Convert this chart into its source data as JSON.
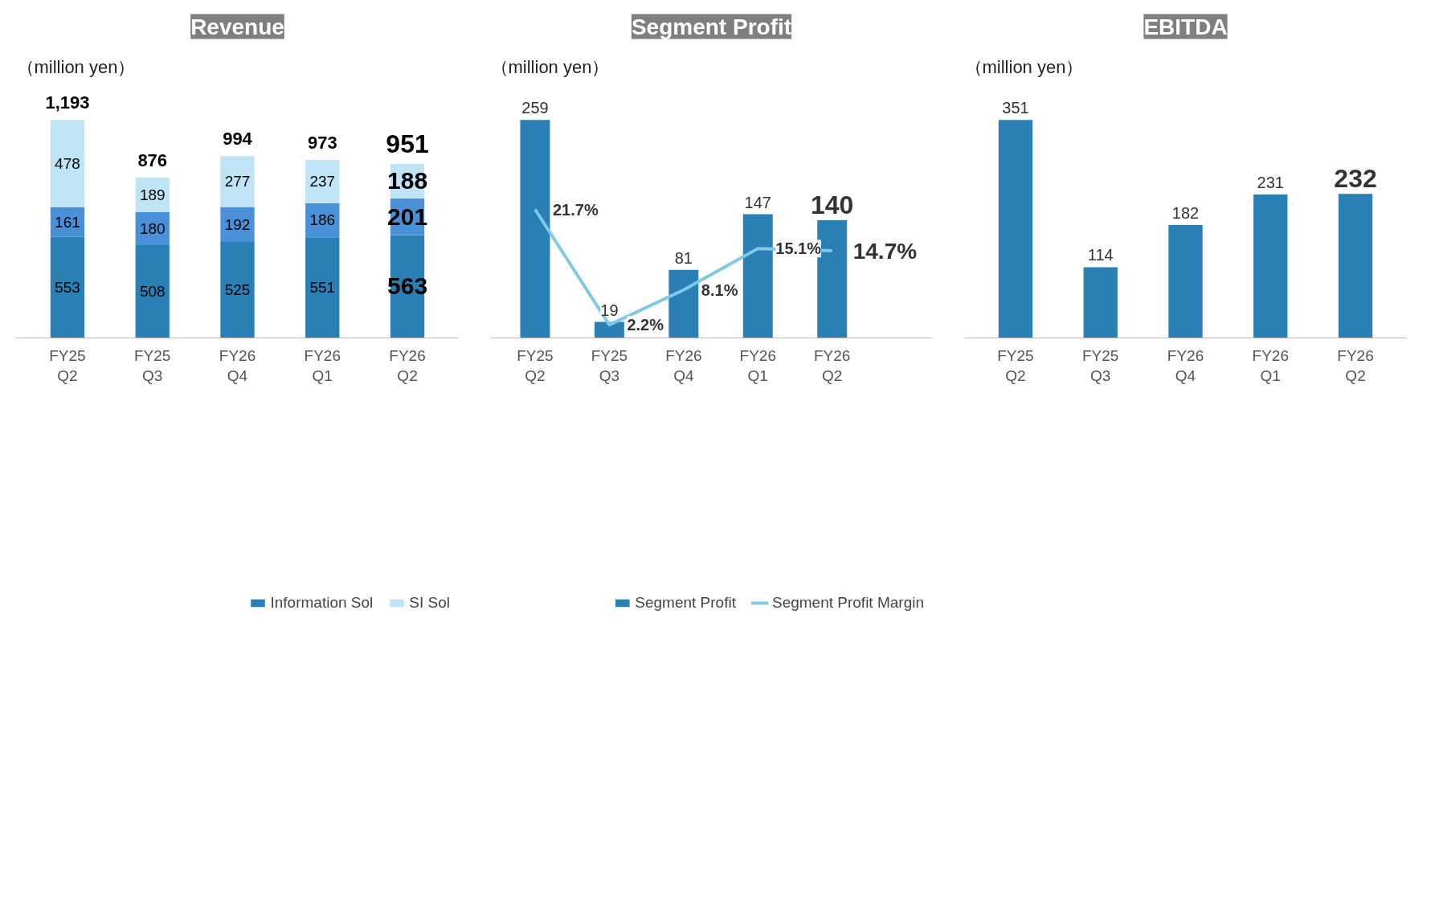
{
  "chart_data": [
    {
      "type": "bar",
      "title": "Revenue",
      "subtitle": "（million yen）",
      "stacked": true,
      "data_labels": true,
      "legend": "bottom",
      "categories": [
        "FY25\nQ2",
        "FY25\nQ3",
        "FY26\nQ4",
        "FY26\nQ1",
        "FY26\nQ2"
      ],
      "series": [
        {
          "name": "Information Sol",
          "color": "#2a7fb4",
          "values": [
            553,
            508,
            525,
            551,
            563
          ]
        },
        {
          "color": "#4a90d9",
          "values": [
            161,
            180,
            192,
            186,
            201
          ]
        },
        {
          "name": "SI Sol",
          "color": "#bfe4f5",
          "values": [
            478,
            189,
            277,
            237,
            188
          ]
        }
      ],
      "totals": [
        "1,193",
        "876",
        "994",
        "973",
        "951"
      ]
    },
    {
      "type": "bar",
      "title": "Segment Profit",
      "subtitle": "（million yen）",
      "data_labels": true,
      "legend": "bottom",
      "categories": [
        "FY25\nQ2",
        "FY25\nQ3",
        "FY26\nQ4",
        "FY26\nQ1",
        "FY26\nQ2"
      ],
      "series": [
        {
          "name": "Segment Profit",
          "color": "#2a7fb4",
          "values": [
            259,
            19,
            81,
            147,
            140
          ]
        },
        {
          "name": "Segment Profit Margin",
          "type": "line",
          "axis": "y2",
          "color": "#7ec8e8",
          "values": [
            21.7,
            2.2,
            8.1,
            15.1,
            14.7
          ],
          "value_labels": [
            "21.7%",
            "2.2%",
            "8.1%",
            "15.1%",
            "14.7%"
          ]
        }
      ]
    },
    {
      "type": "bar",
      "title": "EBITDA",
      "subtitle": "（million yen）",
      "data_labels": true,
      "categories": [
        "FY25\nQ2",
        "FY25\nQ3",
        "FY26\nQ4",
        "FY26\nQ1",
        "FY26\nQ2"
      ],
      "series": [
        {
          "color": "#2a7fb4",
          "values": [
            351,
            114,
            182,
            231,
            232
          ]
        }
      ]
    }
  ]
}
